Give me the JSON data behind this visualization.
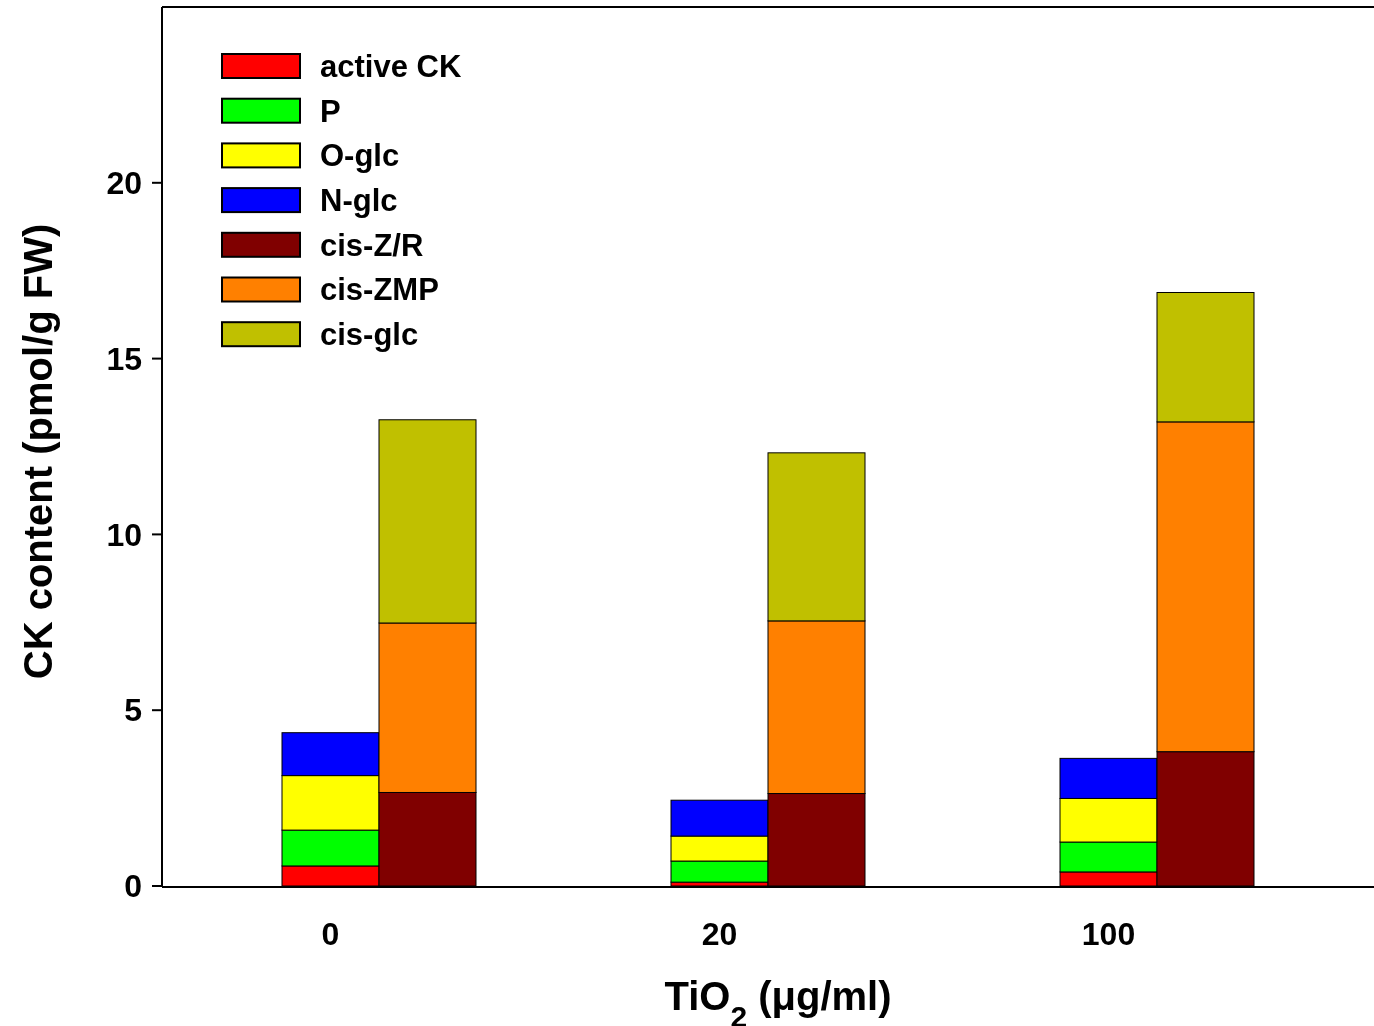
{
  "chart_data": {
    "type": "bar",
    "stacked": true,
    "xlabel": "TiO$_{2}$ (μg/ml)",
    "ylabel": "CK content (pmol/g FW)",
    "categories": [
      "0",
      null,
      "20",
      null,
      "100",
      null
    ],
    "ylim": [
      0,
      25
    ],
    "yticks": [
      0,
      5,
      10,
      15,
      20
    ],
    "grid": false,
    "legend": "top left",
    "series": [
      {
        "name": "active CK",
        "color": "#ff0000",
        "values": [
          0.57,
          null,
          0.11,
          null,
          0.4,
          null
        ]
      },
      {
        "name": "P",
        "color": "#00ff00",
        "values": [
          1.02,
          null,
          0.6,
          null,
          0.85,
          null
        ]
      },
      {
        "name": "O-glc",
        "color": "#ffff00",
        "values": [
          1.55,
          null,
          0.71,
          null,
          1.24,
          null
        ]
      },
      {
        "name": "N-glc",
        "color": "#0000ff",
        "values": [
          1.22,
          null,
          1.02,
          null,
          1.14,
          null
        ]
      },
      {
        "name": "cis-Z/R",
        "color": "#800000",
        "values": [
          null,
          2.66,
          null,
          2.63,
          null,
          3.82
        ]
      },
      {
        "name": "cis-ZMP",
        "color": "#ff8000",
        "values": [
          null,
          4.82,
          null,
          4.91,
          null,
          9.38
        ]
      },
      {
        "name": "cis-glc",
        "color": "#c0c000",
        "values": [
          null,
          5.78,
          null,
          4.78,
          null,
          3.68
        ]
      }
    ]
  }
}
